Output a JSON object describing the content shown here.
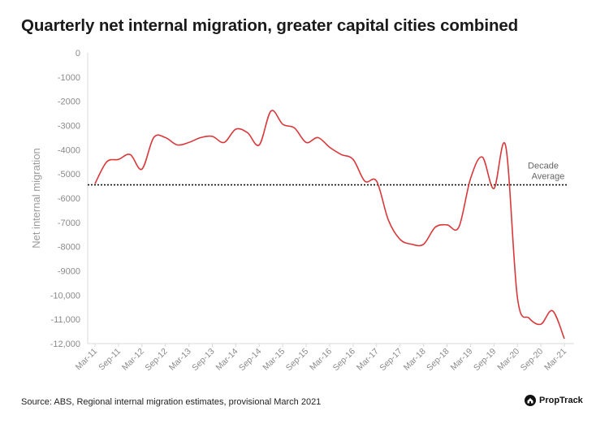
{
  "chart_data": {
    "type": "line",
    "title": "Quarterly net internal migration, greater capital cities combined",
    "ylabel": "Net internal migration",
    "xlabel": "",
    "ylim": [
      -12000,
      0
    ],
    "y_ticks": [
      "0",
      "-1000",
      "-2000",
      "-3000",
      "-4000",
      "-5000",
      "-6000",
      "-7000",
      "-8000",
      "-9000",
      "-10,000",
      "-11,000",
      "-12,000"
    ],
    "x_tick_labels": [
      "Mar-11",
      "Sep-11",
      "Mar-12",
      "Sep-12",
      "Mar-13",
      "Sep-13",
      "Mar-14",
      "Sep-14",
      "Mar-15",
      "Sep-15",
      "Mar-16",
      "Sep-16",
      "Mar-17",
      "Sep-17",
      "Mar-18",
      "Sep-18",
      "Mar-19",
      "Sep-19",
      "Mar-20",
      "Sep-20",
      "Mar-21"
    ],
    "x": [
      "Mar-11",
      "Jun-11",
      "Sep-11",
      "Dec-11",
      "Mar-12",
      "Jun-12",
      "Sep-12",
      "Dec-12",
      "Mar-13",
      "Jun-13",
      "Sep-13",
      "Dec-13",
      "Mar-14",
      "Jun-14",
      "Sep-14",
      "Dec-14",
      "Mar-15",
      "Jun-15",
      "Sep-15",
      "Dec-15",
      "Mar-16",
      "Jun-16",
      "Sep-16",
      "Dec-16",
      "Mar-17",
      "Jun-17",
      "Sep-17",
      "Dec-17",
      "Mar-18",
      "Jun-18",
      "Sep-18",
      "Dec-18",
      "Mar-19",
      "Jun-19",
      "Sep-19",
      "Dec-19",
      "Mar-20",
      "Jun-20",
      "Sep-20",
      "Dec-20",
      "Mar-21"
    ],
    "series": [
      {
        "name": "",
        "color": "#d9383a",
        "values": [
          -5400,
          -4500,
          -4400,
          -4200,
          -4800,
          -3500,
          -3500,
          -3800,
          -3700,
          -3500,
          -3450,
          -3700,
          -3150,
          -3300,
          -3800,
          -2400,
          -2950,
          -3100,
          -3700,
          -3500,
          -3900,
          -4200,
          -4400,
          -5300,
          -5300,
          -6900,
          -7700,
          -7900,
          -7900,
          -7200,
          -7100,
          -7200,
          -5200,
          -4300,
          -5600,
          -3850,
          -10100,
          -10950,
          -11200,
          -10650,
          -11800
        ]
      }
    ],
    "reference_line": {
      "label_line1": "Decade",
      "label_line2": "Average",
      "value": -5450,
      "style": "dotted",
      "color": "#111111"
    },
    "grid": false,
    "legend": "none"
  },
  "footer": {
    "source": "Source: ABS, Regional internal migration estimates, provisional March 2021",
    "brand": "PropTrack"
  },
  "icons": {
    "brand_logo": "house-logo-icon"
  }
}
